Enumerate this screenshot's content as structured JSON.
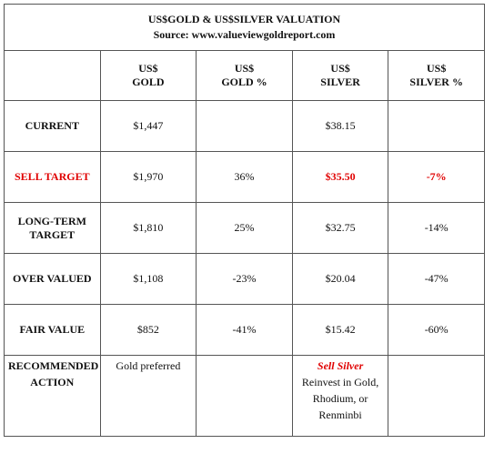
{
  "header": {
    "title": "US$GOLD & US$SILVER VALUATION",
    "source": "Source: www.valueviewgoldreport.com"
  },
  "table": {
    "columns": [
      "US$\nGOLD",
      "US$\nGOLD %",
      "US$\nSILVER",
      "US$\nSILVER %"
    ],
    "rows": [
      {
        "label": "CURRENT",
        "gold": "$1,447",
        "silver": "$38.15"
      },
      {
        "label": "SELL TARGET",
        "gold": "$1,970",
        "gold_pct": "36%",
        "silver": "$35.50",
        "silver_pct": "-7%"
      },
      {
        "label": "LONG-TERM\nTARGET",
        "gold": "$1,810",
        "gold_pct": "25%",
        "silver": "$32.75",
        "silver_pct": "-14%"
      },
      {
        "label": "OVER VALUED",
        "gold": "$1,108",
        "gold_pct": "-23%",
        "silver": "$20.04",
        "silver_pct": "-47%"
      },
      {
        "label": "FAIR VALUE",
        "gold": "$852",
        "gold_pct": "-41%",
        "silver": "$15.42",
        "silver_pct": "-60%"
      },
      {
        "label": "RECOMMENDED\nACTION",
        "gold": "Gold preferred",
        "silver_note": "Sell Silver",
        "silver": "Reinvest in Gold, Rhodium, or Renminbi"
      }
    ]
  }
}
